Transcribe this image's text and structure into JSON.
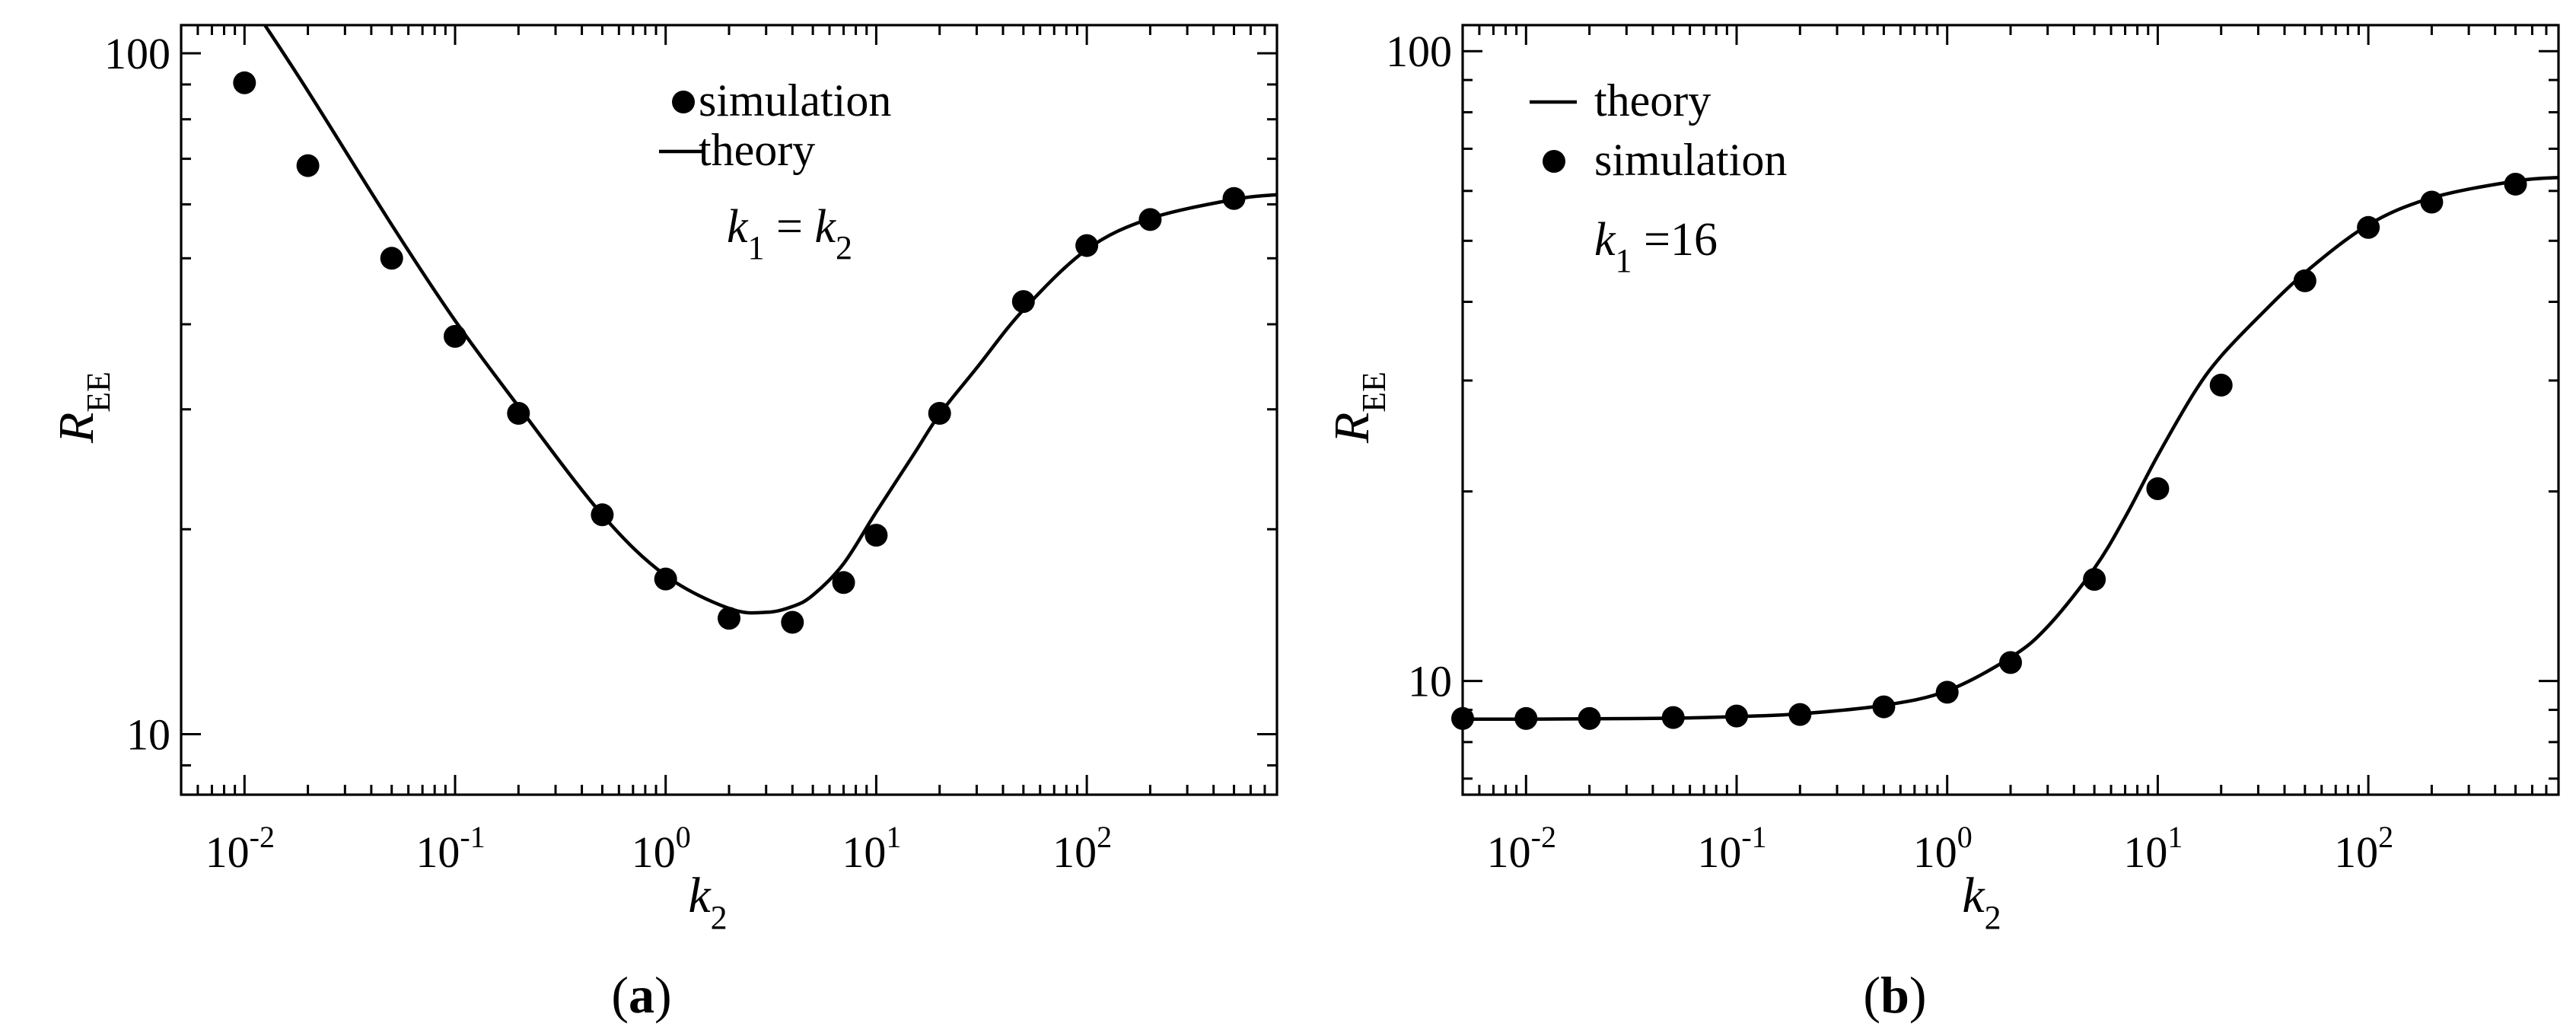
{
  "chart_data": [
    {
      "panel": "(a)",
      "panel_letter": "a",
      "type": "scatter",
      "xscale": "log",
      "yscale": "log",
      "xlabel": "k",
      "xlabel_sub": "2",
      "ylabel": "R",
      "ylabel_sub": "EE",
      "xlim": [
        0.005,
        800
      ],
      "ylim": [
        8.15,
        110
      ],
      "x_ticks": [
        {
          "value": 0.01,
          "base": "10",
          "exp": "-2"
        },
        {
          "value": 0.1,
          "base": "10",
          "exp": "-1"
        },
        {
          "value": 1,
          "base": "10",
          "exp": "0"
        },
        {
          "value": 10,
          "base": "10",
          "exp": "1"
        },
        {
          "value": 100,
          "base": "10",
          "exp": "2"
        }
      ],
      "y_ticks": [
        {
          "value": 10,
          "label": "10"
        },
        {
          "value": 100,
          "label": "100"
        }
      ],
      "legend": {
        "location": "top-center",
        "entries": [
          {
            "marker": "dot",
            "label": "simulation"
          },
          {
            "marker": "line",
            "label": "theory"
          }
        ]
      },
      "annotation": {
        "k": "k",
        "sub1": "1",
        "eq": "=",
        "sub2": "2"
      },
      "series": [
        {
          "name": "simulation",
          "style": "markers",
          "x": [
            0.01,
            0.02,
            0.05,
            0.1,
            0.2,
            0.5,
            1,
            2,
            4,
            7,
            10,
            20,
            50,
            100,
            200,
            500
          ],
          "y": [
            90.5,
            68.4,
            50,
            38.4,
            29.6,
            21,
            16.9,
            14.8,
            14.6,
            16.7,
            19.6,
            29.6,
            43.2,
            52.2,
            57,
            61.2
          ]
        },
        {
          "name": "theory",
          "style": "line",
          "x": [
            0.0125,
            0.02,
            0.05,
            0.1,
            0.2,
            0.5,
            1,
            2,
            3,
            4,
            5,
            7,
            10,
            15,
            20,
            30,
            50,
            100,
            200,
            500,
            800
          ],
          "y": [
            110,
            88,
            56,
            40.5,
            30.3,
            21,
            17.1,
            15.3,
            15.1,
            15.4,
            16,
            17.8,
            21.2,
            25.7,
            29.5,
            34.5,
            42,
            51.5,
            57.2,
            61,
            62
          ]
        }
      ]
    },
    {
      "panel": "(b)",
      "panel_letter": "b",
      "type": "scatter",
      "xscale": "log",
      "yscale": "log",
      "xlabel": "k",
      "xlabel_sub": "2",
      "ylabel": "R",
      "ylabel_sub": "EE",
      "xlim": [
        0.005,
        800
      ],
      "ylim": [
        6.6,
        110
      ],
      "x_ticks": [
        {
          "value": 0.01,
          "base": "10",
          "exp": "-2"
        },
        {
          "value": 0.1,
          "base": "10",
          "exp": "-1"
        },
        {
          "value": 1,
          "base": "10",
          "exp": "0"
        },
        {
          "value": 10,
          "base": "10",
          "exp": "1"
        },
        {
          "value": 100,
          "base": "10",
          "exp": "2"
        }
      ],
      "y_ticks": [
        {
          "value": 10,
          "label": "10"
        },
        {
          "value": 100,
          "label": "100"
        }
      ],
      "legend": {
        "location": "top-left",
        "entries": [
          {
            "marker": "line",
            "label": "theory"
          },
          {
            "marker": "dot",
            "label": "simulation"
          }
        ]
      },
      "annotation": {
        "k": "k",
        "sub1": "1",
        "eq": "=16"
      },
      "series": [
        {
          "name": "simulation",
          "style": "markers",
          "x": [
            0.005,
            0.01,
            0.02,
            0.05,
            0.1,
            0.2,
            0.5,
            1,
            2,
            5,
            10,
            20,
            50,
            100,
            200,
            500
          ],
          "y": [
            8.72,
            8.72,
            8.72,
            8.75,
            8.8,
            8.85,
            9.1,
            9.6,
            10.7,
            14.5,
            20.2,
            29.5,
            43.2,
            52.5,
            57.6,
            61.5
          ]
        },
        {
          "name": "theory",
          "style": "line",
          "x": [
            0.005,
            0.01,
            0.02,
            0.05,
            0.1,
            0.2,
            0.5,
            1,
            2,
            3,
            5,
            7,
            10,
            15,
            20,
            30,
            50,
            100,
            200,
            500,
            800
          ],
          "y": [
            8.7,
            8.7,
            8.71,
            8.73,
            8.78,
            8.87,
            9.15,
            9.65,
            10.9,
            12.2,
            15.1,
            18.2,
            22.8,
            28.8,
            32.8,
            37.8,
            44.5,
            53,
            58.5,
            62.2,
            63
          ]
        }
      ]
    }
  ]
}
